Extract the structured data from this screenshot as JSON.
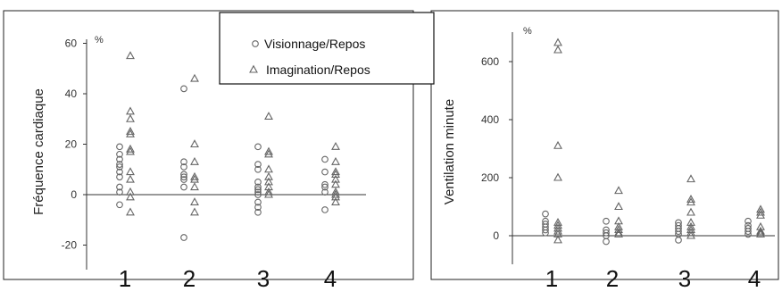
{
  "legend": {
    "items": [
      {
        "label": "Visionnage/Repos",
        "marker": "circle"
      },
      {
        "label": "Imagination/Repos",
        "marker": "triangle"
      }
    ]
  },
  "colors": {
    "marker_stroke": "#666666",
    "axis": "#333333",
    "frame": "#222222"
  },
  "chart_data": [
    {
      "type": "scatter",
      "ylabel": "Fréquence cardiaque",
      "unit": "%",
      "ylim": [
        -30,
        60
      ],
      "yticks": [
        60,
        40,
        20,
        0,
        -20
      ],
      "yticks_labels": [
        "60",
        "40",
        "20",
        "0",
        "-20"
      ],
      "categories": [
        "1",
        "2",
        "3",
        "4"
      ],
      "series": [
        {
          "name": "Visionnage/Repos",
          "marker": "circle",
          "groups": [
            [
              19,
              16,
              14,
              12,
              11,
              9,
              7,
              3,
              1,
              -4
            ],
            [
              42,
              13,
              11,
              8,
              7,
              6,
              3,
              -17
            ],
            [
              19,
              12,
              10,
              5,
              3,
              2,
              1,
              0,
              -3,
              -5,
              -7
            ],
            [
              14,
              9,
              4,
              3,
              1,
              -6
            ]
          ]
        },
        {
          "name": "Imagination/Repos",
          "marker": "triangle",
          "groups": [
            [
              55,
              33,
              30,
              25,
              24,
              18,
              17,
              9,
              6,
              1,
              -1,
              -7
            ],
            [
              46,
              20,
              13,
              7,
              6,
              3,
              -3,
              -7
            ],
            [
              31,
              17,
              16,
              10,
              7,
              5,
              3,
              1,
              0
            ],
            [
              19,
              13,
              9,
              8,
              6,
              4,
              1,
              0,
              -1,
              -3
            ]
          ]
        }
      ]
    },
    {
      "type": "scatter",
      "ylabel": "Ventilation minute",
      "unit": "%",
      "ylim": [
        -100,
        700
      ],
      "yticks": [
        600,
        400,
        200,
        0
      ],
      "yticks_labels": [
        "600",
        "400",
        "200",
        "0"
      ],
      "categories": [
        "1",
        "2",
        "3",
        "4"
      ],
      "series": [
        {
          "name": "Visionnage/Repos",
          "marker": "circle",
          "groups": [
            [
              75,
              50,
              40,
              30,
              20,
              10
            ],
            [
              50,
              20,
              10,
              0,
              -20
            ],
            [
              45,
              35,
              25,
              15,
              5,
              -15
            ],
            [
              50,
              35,
              25,
              15,
              5
            ]
          ]
        },
        {
          "name": "Imagination/Repos",
          "marker": "triangle",
          "groups": [
            [
              665,
              640,
              310,
              200,
              45,
              35,
              25,
              15,
              5,
              -15
            ],
            [
              155,
              100,
              50,
              30,
              20,
              10,
              5
            ],
            [
              195,
              125,
              115,
              80,
              45,
              30,
              20,
              10,
              0
            ],
            [
              90,
              80,
              70,
              30,
              15,
              10,
              5
            ]
          ]
        }
      ]
    }
  ]
}
